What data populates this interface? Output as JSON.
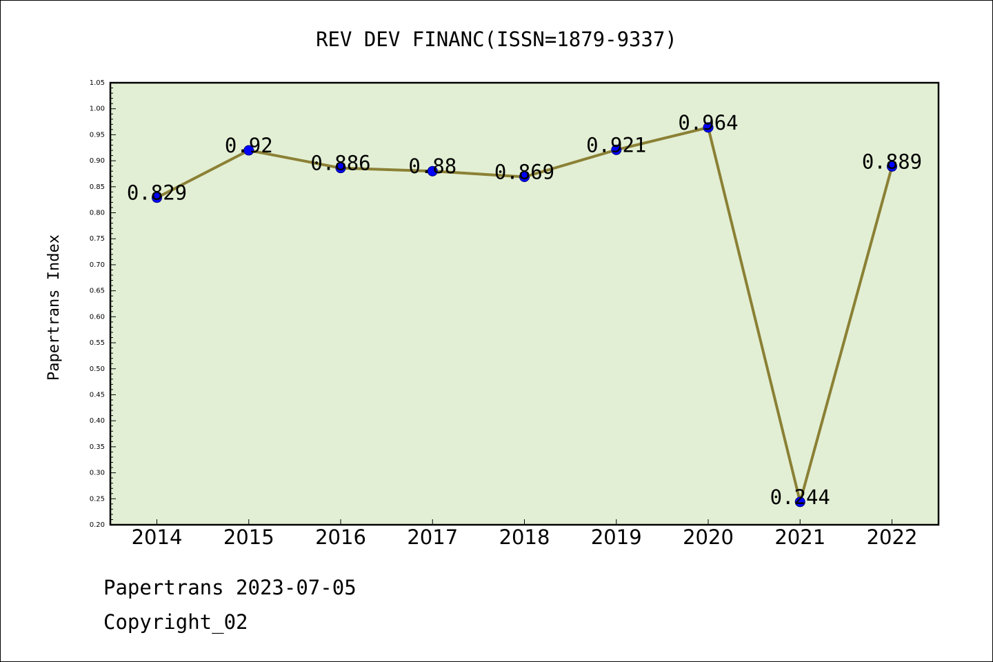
{
  "chart_data": {
    "type": "line",
    "title": "REV DEV FINANC(ISSN=1879-9337)",
    "xlabel": "",
    "ylabel": "Papertrans Index",
    "categories": [
      "2014",
      "2015",
      "2016",
      "2017",
      "2018",
      "2019",
      "2020",
      "2021",
      "2022"
    ],
    "values": [
      0.829,
      0.92,
      0.886,
      0.88,
      0.869,
      0.921,
      0.964,
      0.244,
      0.889
    ],
    "data_labels": [
      "0.829",
      "0.92",
      "0.886",
      "0.88",
      "0.869",
      "0.921",
      "0.964",
      "0.244",
      "0.889"
    ],
    "ylim": [
      0.2,
      1.05
    ],
    "yticks": [
      "0.20",
      "0.25",
      "0.30",
      "0.35",
      "0.40",
      "0.45",
      "0.50",
      "0.55",
      "0.60",
      "0.65",
      "0.70",
      "0.75",
      "0.80",
      "0.85",
      "0.90",
      "0.95",
      "1.00",
      "1.05"
    ],
    "grid": false,
    "colors": {
      "plot_background": "#e2efd4",
      "line": "#8b8035",
      "marker_fill": "#0000ff",
      "marker_edge": "#000080"
    }
  },
  "footer": {
    "date_line": "Papertrans 2023-07-05",
    "copyright": "Copyright_02"
  }
}
